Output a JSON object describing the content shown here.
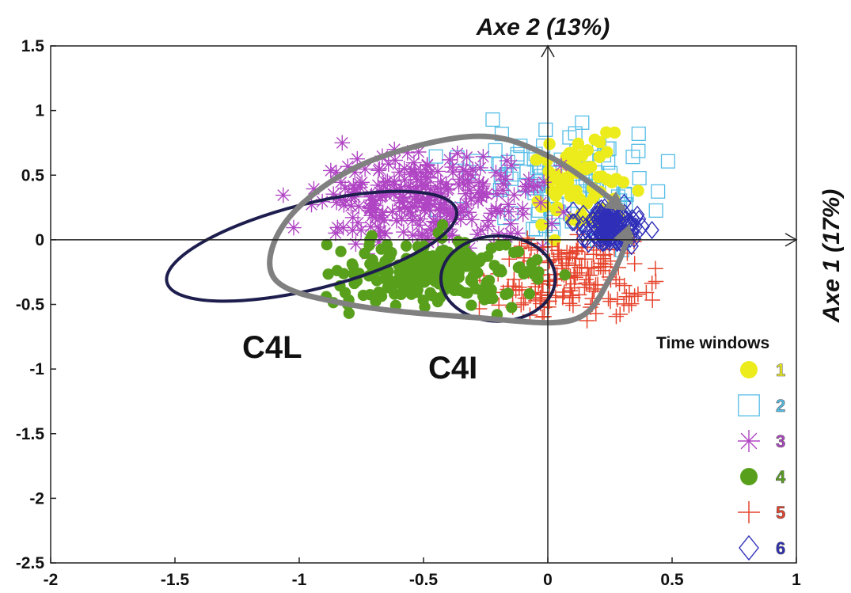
{
  "chart_data": {
    "type": "scatter",
    "title": "",
    "xlabel": "Axe 1 (17%)",
    "ylabel": "Axe 2 (13%)",
    "xlim": [
      -2,
      1
    ],
    "ylim": [
      -2.5,
      1.5
    ],
    "x_ticks": [
      "-2",
      "-1.5",
      "-1",
      "-0.5",
      "0",
      "0.5",
      "1"
    ],
    "y_ticks": [
      "1.5",
      "1",
      "0.5",
      "0",
      "-0.5",
      "-1",
      "-1.5",
      "-2",
      "-2.5"
    ],
    "legend": {
      "title": "Time windows",
      "position": "right",
      "entries": [
        {
          "label": "1",
          "marker": "circle",
          "color": "#ecec1c"
        },
        {
          "label": "2",
          "marker": "square",
          "color": "#55bde6"
        },
        {
          "label": "3",
          "marker": "star",
          "color": "#b045c4"
        },
        {
          "label": "4",
          "marker": "filled-circle",
          "color": "#58a01c"
        },
        {
          "label": "5",
          "marker": "plus",
          "color": "#e6452e"
        },
        {
          "label": "6",
          "marker": "diamond",
          "color": "#2e2eb8"
        }
      ]
    },
    "series": [
      {
        "name": "1",
        "cx": 0.15,
        "cy": 0.4,
        "rx": 0.22,
        "ry": 0.35,
        "n": 70
      },
      {
        "name": "2",
        "cx": 0.05,
        "cy": 0.45,
        "rx": 0.38,
        "ry": 0.42,
        "n": 110
      },
      {
        "name": "3",
        "cx": -0.5,
        "cy": 0.3,
        "rx": 0.45,
        "ry": 0.35,
        "n": 260
      },
      {
        "name": "4",
        "cx": -0.45,
        "cy": -0.25,
        "rx": 0.4,
        "ry": 0.25,
        "n": 240
      },
      {
        "name": "5",
        "cx": 0.1,
        "cy": -0.3,
        "rx": 0.3,
        "ry": 0.35,
        "n": 170
      },
      {
        "name": "6",
        "cx": 0.25,
        "cy": 0.1,
        "rx": 0.12,
        "ry": 0.15,
        "n": 140
      }
    ],
    "clusters": [
      {
        "label": "C4L",
        "cx": -0.95,
        "cy": -0.05,
        "rx": 0.6,
        "ry": 0.33,
        "angle_deg": -14
      },
      {
        "label": "C4I",
        "cx": -0.2,
        "cy": -0.3,
        "rx": 0.23,
        "ry": 0.33,
        "angle_deg": 0
      }
    ],
    "trajectory": [
      [
        0.3,
        0.25
      ],
      [
        0.0,
        0.65
      ],
      [
        -0.3,
        0.8
      ],
      [
        -0.75,
        0.58
      ],
      [
        -1.05,
        0.15
      ],
      [
        -1.1,
        -0.3
      ],
      [
        -0.8,
        -0.5
      ],
      [
        -0.3,
        -0.6
      ],
      [
        0.1,
        -0.62
      ],
      [
        0.25,
        -0.3
      ],
      [
        0.33,
        0.05
      ]
    ],
    "grid": false
  }
}
